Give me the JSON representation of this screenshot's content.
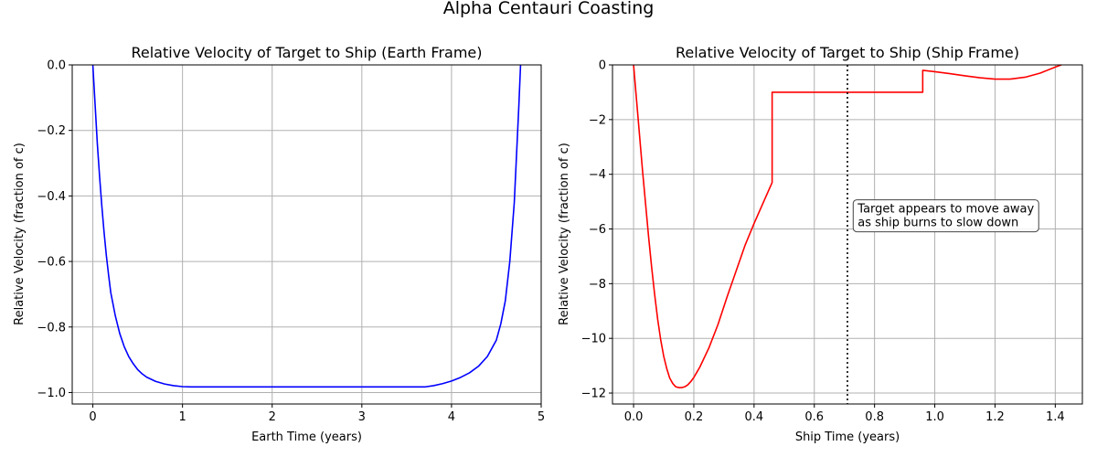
{
  "figure": {
    "suptitle": "Alpha Centauri Coasting"
  },
  "chart_data": [
    {
      "type": "line",
      "title": "Relative Velocity of Target to Ship (Earth Frame)",
      "xlabel": "Earth Time (years)",
      "ylabel": "Relative Velocity (fraction of c)",
      "xlim": [
        -0.23,
        5.0
      ],
      "ylim": [
        -1.035,
        0.0
      ],
      "xticks": [
        0,
        1,
        2,
        3,
        4,
        5
      ],
      "yticks": [
        0.0,
        -0.2,
        -0.4,
        -0.6,
        -0.8,
        -1.0
      ],
      "xtick_labels": [
        "0",
        "1",
        "2",
        "3",
        "4",
        "5"
      ],
      "ytick_labels": [
        "0.0",
        "−0.2",
        "−0.4",
        "−0.6",
        "−0.8",
        "−1.0"
      ],
      "grid": true,
      "series": [
        {
          "color": "#0000ff",
          "x": [
            0.0,
            0.025,
            0.05,
            0.075,
            0.1,
            0.125,
            0.15,
            0.175,
            0.2,
            0.25,
            0.3,
            0.35,
            0.4,
            0.45,
            0.5,
            0.55,
            0.6,
            0.7,
            0.8,
            0.9,
            1.0,
            1.1,
            1.5,
            2.0,
            2.5,
            3.0,
            3.5,
            3.7,
            3.8,
            3.9,
            4.0,
            4.1,
            4.2,
            4.3,
            4.4,
            4.5,
            4.55,
            4.6,
            4.65,
            4.7,
            4.75,
            4.77
          ],
          "y": [
            0.0,
            -0.12,
            -0.24,
            -0.34,
            -0.43,
            -0.51,
            -0.58,
            -0.64,
            -0.695,
            -0.765,
            -0.82,
            -0.86,
            -0.89,
            -0.912,
            -0.93,
            -0.943,
            -0.953,
            -0.966,
            -0.974,
            -0.979,
            -0.982,
            -0.983,
            -0.983,
            -0.983,
            -0.983,
            -0.983,
            -0.983,
            -0.983,
            -0.979,
            -0.973,
            -0.965,
            -0.954,
            -0.94,
            -0.92,
            -0.89,
            -0.84,
            -0.79,
            -0.72,
            -0.6,
            -0.42,
            -0.13,
            0.0
          ]
        }
      ]
    },
    {
      "type": "line",
      "title": "Relative Velocity of Target to Ship (Ship Frame)",
      "xlabel": "Ship Time (years)",
      "ylabel": "Relative Velocity (fraction of c)",
      "xlim": [
        -0.07,
        1.49
      ],
      "ylim": [
        -12.4,
        0.0
      ],
      "xticks": [
        0.0,
        0.2,
        0.4,
        0.6,
        0.8,
        1.0,
        1.2,
        1.4
      ],
      "yticks": [
        0,
        -2,
        -4,
        -6,
        -8,
        -10,
        -12
      ],
      "xtick_labels": [
        "0.0",
        "0.2",
        "0.4",
        "0.6",
        "0.8",
        "1.0",
        "1.2",
        "1.4"
      ],
      "ytick_labels": [
        "0",
        "−2",
        "−4",
        "−6",
        "−8",
        "−10",
        "−12"
      ],
      "grid": true,
      "series": [
        {
          "color": "#ff0000",
          "x": [
            0.0,
            0.01,
            0.02,
            0.03,
            0.04,
            0.05,
            0.06,
            0.07,
            0.08,
            0.09,
            0.1,
            0.11,
            0.12,
            0.13,
            0.14,
            0.15,
            0.16,
            0.17,
            0.18,
            0.19,
            0.2,
            0.22,
            0.25,
            0.28,
            0.31,
            0.34,
            0.37,
            0.4,
            0.43,
            0.46,
            0.46,
            0.55,
            0.65,
            0.71,
            0.8,
            0.9,
            0.96,
            0.96,
            1.0,
            1.05,
            1.1,
            1.15,
            1.2,
            1.25,
            1.3,
            1.35,
            1.4,
            1.42
          ],
          "y": [
            0.0,
            -1.3,
            -2.6,
            -3.9,
            -5.1,
            -6.3,
            -7.4,
            -8.4,
            -9.3,
            -10.05,
            -10.65,
            -11.1,
            -11.45,
            -11.65,
            -11.77,
            -11.8,
            -11.8,
            -11.77,
            -11.7,
            -11.58,
            -11.43,
            -11.05,
            -10.35,
            -9.5,
            -8.5,
            -7.55,
            -6.6,
            -5.8,
            -5.05,
            -4.3,
            -1.0,
            -1.0,
            -1.0,
            -1.0,
            -1.0,
            -1.0,
            -1.0,
            -0.2,
            -0.25,
            -0.32,
            -0.4,
            -0.47,
            -0.52,
            -0.52,
            -0.45,
            -0.3,
            -0.08,
            0.0
          ]
        }
      ],
      "vline": {
        "x": 0.71,
        "style": "dotted",
        "color": "#000000"
      },
      "annotation": {
        "lines": [
          "Target appears to move away",
          "as ship burns to slow down"
        ],
        "x": 0.72,
        "y": -5.4
      }
    }
  ]
}
